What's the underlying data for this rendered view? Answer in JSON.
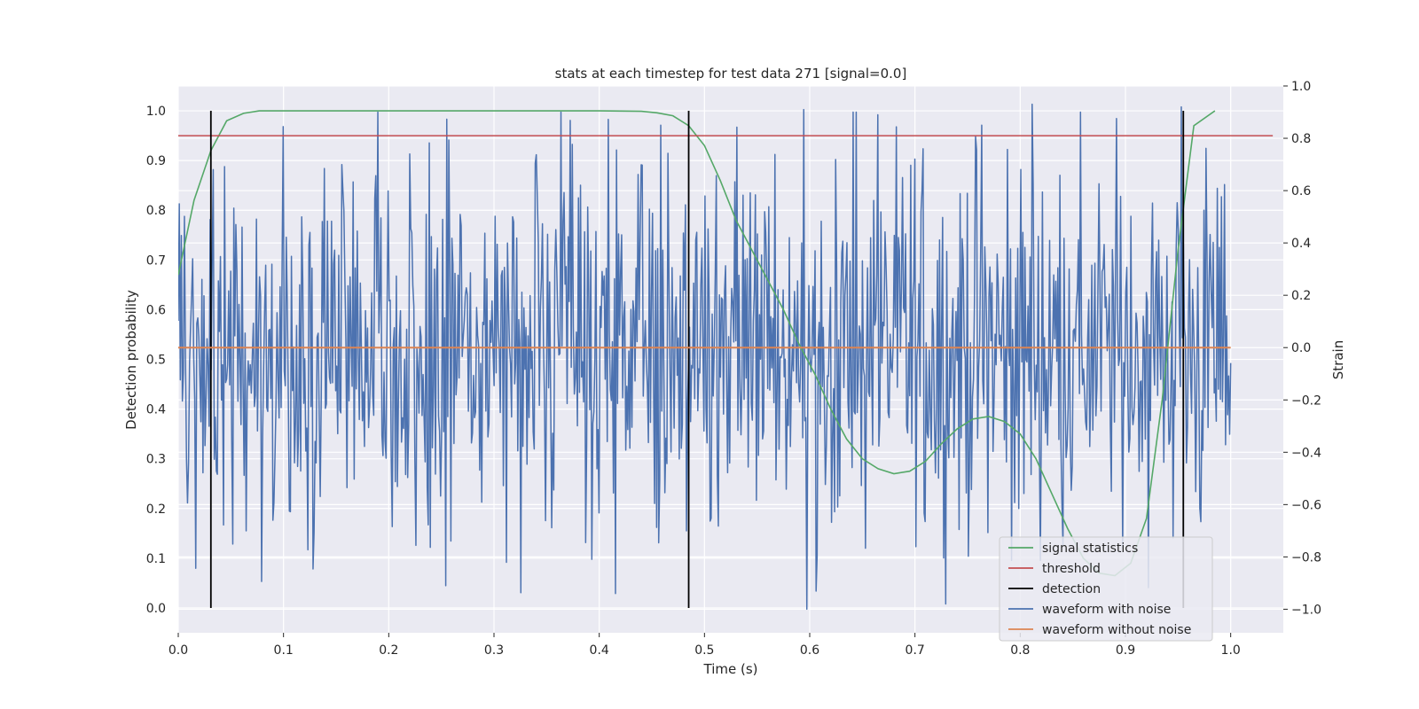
{
  "chart_data": {
    "type": "line",
    "title": "stats at each timestep for test data 271 [signal=0.0]",
    "xlabel": "Time (s)",
    "ylabel": "Detection probability",
    "y2label": "Strain",
    "xlim": [
      0.0,
      1.05
    ],
    "ylim": [
      -0.05,
      1.05
    ],
    "y2lim": [
      -1.09,
      1.0
    ],
    "xticks": [
      "0.0",
      "0.1",
      "0.2",
      "0.3",
      "0.4",
      "0.5",
      "0.6",
      "0.7",
      "0.8",
      "0.9",
      "1.0"
    ],
    "yticks": [
      "0.0",
      "0.1",
      "0.2",
      "0.3",
      "0.4",
      "0.5",
      "0.6",
      "0.7",
      "0.8",
      "0.9",
      "1.0"
    ],
    "y2ticks": [
      "−1.0",
      "−0.8",
      "−0.6",
      "−0.4",
      "−0.2",
      "0.0",
      "0.2",
      "0.4",
      "0.6",
      "0.8",
      "1.0"
    ],
    "grid": true,
    "legend_position": "lower-right",
    "legend": [
      "signal statistics",
      "threshold",
      "detection",
      "waveform with noise",
      "waveform without noise"
    ],
    "colors": {
      "signal_statistics": "#55a868",
      "threshold": "#c44e52",
      "detection": "#000000",
      "waveform_with_noise": "#4c72b0",
      "waveform_without_noise": "#dd8452",
      "plot_bg": "#eaeaf2",
      "grid": "#ffffff"
    },
    "signal_statistics": {
      "x": [
        0.0,
        0.015,
        0.031,
        0.046,
        0.062,
        0.077,
        0.1,
        0.15,
        0.2,
        0.25,
        0.3,
        0.35,
        0.4,
        0.44,
        0.455,
        0.47,
        0.485,
        0.5,
        0.515,
        0.53,
        0.545,
        0.56,
        0.575,
        0.59,
        0.605,
        0.62,
        0.635,
        0.65,
        0.665,
        0.68,
        0.695,
        0.71,
        0.725,
        0.74,
        0.755,
        0.77,
        0.785,
        0.8,
        0.815,
        0.83,
        0.845,
        0.86,
        0.875,
        0.89,
        0.905,
        0.92,
        0.935,
        0.95,
        0.965,
        0.985
      ],
      "y": [
        0.67,
        0.82,
        0.92,
        0.98,
        0.995,
        1.0,
        1.0,
        1.0,
        1.0,
        1.0,
        1.0,
        1.0,
        1.0,
        0.999,
        0.996,
        0.99,
        0.97,
        0.93,
        0.86,
        0.78,
        0.72,
        0.66,
        0.6,
        0.53,
        0.47,
        0.4,
        0.34,
        0.3,
        0.28,
        0.27,
        0.275,
        0.295,
        0.33,
        0.36,
        0.38,
        0.385,
        0.375,
        0.35,
        0.3,
        0.23,
        0.16,
        0.1,
        0.07,
        0.065,
        0.09,
        0.18,
        0.42,
        0.72,
        0.97,
        1.0
      ]
    },
    "threshold": {
      "y": 0.95
    },
    "detections_x": [
      0.031,
      0.485,
      0.955
    ],
    "waveform_without_noise": {
      "y": 0.0
    },
    "waveform_with_noise": {
      "x_range": [
        0.0,
        1.0
      ],
      "samples": 1024,
      "description_values": {
        "min": -1.0,
        "max": 0.93,
        "peaks": [
          {
            "x": 0.458,
            "y": 0.85
          },
          {
            "x": 0.594,
            "y": 0.91
          },
          {
            "x": 0.665,
            "y": 0.89
          },
          {
            "x": 0.763,
            "y": 0.85
          },
          {
            "x": 0.811,
            "y": 0.93
          },
          {
            "x": 0.953,
            "y": 0.92
          },
          {
            "x": 0.22,
            "y": 0.74
          },
          {
            "x": 0.597,
            "y": -1.0
          },
          {
            "x": 0.254,
            "y": -0.91
          },
          {
            "x": 0.415,
            "y": -0.94
          }
        ]
      }
    }
  }
}
